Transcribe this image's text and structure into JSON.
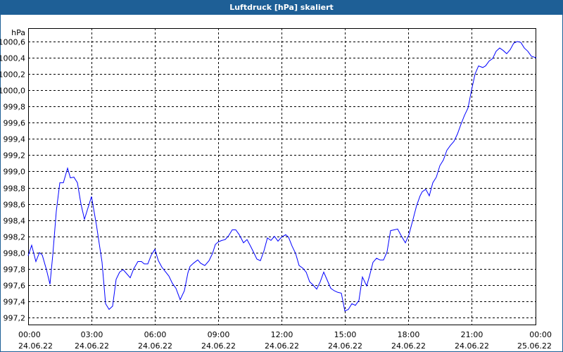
{
  "window": {
    "title": "Luftdruck [hPa] skaliert"
  },
  "chart_data": {
    "type": "line",
    "title": "Luftdruck [hPa] skaliert",
    "ylabel": "hPa",
    "xlabel": "",
    "ylim": [
      997.1,
      1000.7
    ],
    "yticks": [
      "997,2",
      "997,4",
      "997,6",
      "997,8",
      "998,0",
      "998,2",
      "998,4",
      "998,6",
      "998,8",
      "999,0",
      "999,2",
      "999,4",
      "999,6",
      "999,8",
      "1000,0",
      "1000,2",
      "1000,4",
      "1000,6"
    ],
    "ytick_values": [
      997.2,
      997.4,
      997.6,
      997.8,
      998.0,
      998.2,
      998.4,
      998.6,
      998.8,
      999.0,
      999.2,
      999.4,
      999.6,
      999.8,
      1000.0,
      1000.2,
      1000.4,
      1000.6
    ],
    "xlim_minutes": [
      0,
      1440
    ],
    "xticks": [
      {
        "time": "00:00",
        "date": "24.06.22"
      },
      {
        "time": "03:00",
        "date": "24.06.22"
      },
      {
        "time": "06:00",
        "date": "24.06.22"
      },
      {
        "time": "09:00",
        "date": "24.06.22"
      },
      {
        "time": "12:00",
        "date": "24.06.22"
      },
      {
        "time": "15:00",
        "date": "24.06.22"
      },
      {
        "time": "18:00",
        "date": "24.06.22"
      },
      {
        "time": "21:00",
        "date": "24.06.22"
      },
      {
        "time": "00:00",
        "date": "25.06.22"
      }
    ],
    "grid": true,
    "series": [
      {
        "name": "Luftdruck",
        "color": "#0000ff",
        "x_minutes": [
          0,
          10,
          22,
          32,
          40,
          52,
          62,
          70,
          80,
          90,
          100,
          112,
          120,
          130,
          140,
          150,
          160,
          170,
          180,
          194,
          210,
          220,
          230,
          240,
          250,
          260,
          270,
          290,
          300,
          312,
          322,
          330,
          340,
          350,
          360,
          370,
          380,
          400,
          410,
          420,
          432,
          444,
          454,
          460,
          470,
          482,
          490,
          502,
          514,
          524,
          532,
          540,
          550,
          560,
          570,
          580,
          590,
          600,
          612,
          622,
          632,
          640,
          650,
          660,
          670,
          680,
          690,
          700,
          710,
          720,
          732,
          740,
          750,
          760,
          770,
          780,
          790,
          800,
          810,
          820,
          830,
          840,
          850,
          860,
          870,
          880,
          890,
          900,
          910,
          920,
          930,
          940,
          950,
          962,
          970,
          980,
          990,
          1000,
          1010,
          1020,
          1030,
          1040,
          1050,
          1060,
          1072,
          1082,
          1092,
          1104,
          1114,
          1120,
          1130,
          1140,
          1150,
          1160,
          1170,
          1180,
          1190,
          1200,
          1210,
          1220,
          1230,
          1240,
          1250,
          1260,
          1270,
          1280,
          1292,
          1300,
          1310,
          1320,
          1330,
          1340,
          1350,
          1360,
          1370,
          1380,
          1390,
          1400,
          1410,
          1420,
          1430,
          1444
        ],
        "values": [
          997.96,
          998.09,
          997.89,
          998.0,
          997.97,
          997.79,
          997.61,
          997.97,
          998.51,
          998.86,
          998.86,
          999.04,
          998.92,
          998.93,
          998.86,
          998.6,
          998.41,
          998.55,
          998.69,
          998.34,
          997.88,
          997.37,
          997.3,
          997.34,
          997.67,
          997.76,
          997.79,
          997.69,
          997.8,
          997.89,
          997.89,
          997.86,
          997.86,
          997.97,
          998.04,
          997.9,
          997.82,
          997.71,
          997.62,
          997.56,
          997.42,
          997.53,
          997.75,
          997.83,
          997.87,
          997.91,
          997.87,
          997.84,
          997.9,
          997.99,
          998.1,
          998.13,
          998.15,
          998.16,
          998.21,
          998.28,
          998.28,
          998.22,
          998.12,
          998.16,
          998.08,
          998.01,
          997.92,
          997.9,
          998.02,
          998.18,
          998.15,
          998.2,
          998.14,
          998.19,
          998.22,
          998.19,
          998.08,
          997.99,
          997.84,
          997.81,
          997.76,
          997.64,
          997.6,
          997.55,
          997.64,
          997.76,
          997.66,
          997.56,
          997.53,
          997.51,
          997.5,
          997.28,
          997.3,
          997.37,
          997.35,
          997.41,
          997.7,
          997.59,
          997.71,
          997.88,
          997.93,
          997.91,
          997.91,
          998.01,
          998.27,
          998.28,
          998.29,
          998.21,
          998.12,
          998.22,
          998.38,
          998.58,
          998.7,
          998.75,
          998.78,
          998.7,
          998.86,
          998.93,
          999.07,
          999.14,
          999.26,
          999.32,
          999.37,
          999.46,
          999.58,
          999.69,
          999.78,
          1000.0,
          1000.2,
          1000.3,
          1000.28,
          1000.3,
          1000.36,
          1000.39,
          1000.48,
          1000.52,
          1000.49,
          1000.45,
          1000.5,
          1000.58,
          1000.6,
          1000.59,
          1000.52,
          1000.48,
          1000.42,
          1000.4
        ]
      }
    ]
  }
}
